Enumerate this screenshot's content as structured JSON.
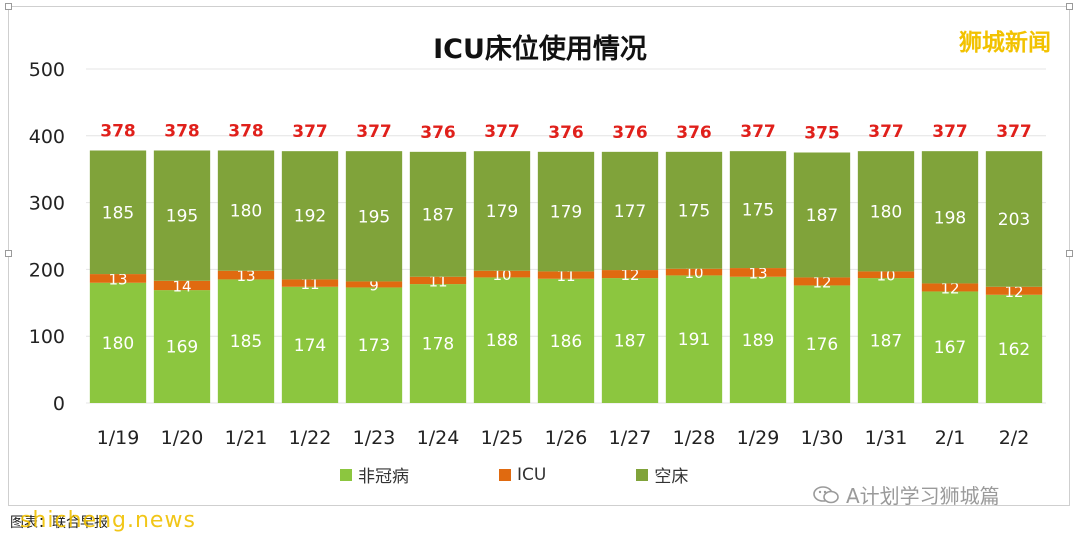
{
  "title": "ICU床位使用情况",
  "brand": "狮城新闻",
  "colors": {
    "non_covid": "#8cc63f",
    "icu": "#e06a10",
    "empty": "#80a33a",
    "total_label": "#e0201b"
  },
  "legend": [
    "非冠病",
    "ICU",
    "空床"
  ],
  "wechat_watermark": "A计划学习狮城篇",
  "source": "图表：联合早报",
  "site_watermark": "shicheng.news",
  "chart_data": {
    "type": "bar",
    "stacked": true,
    "categories": [
      "1/19",
      "1/20",
      "1/21",
      "1/22",
      "1/23",
      "1/24",
      "1/25",
      "1/26",
      "1/27",
      "1/28",
      "1/29",
      "1/30",
      "1/31",
      "2/1",
      "2/2"
    ],
    "series": [
      {
        "name": "非冠病",
        "values": [
          180,
          169,
          185,
          174,
          173,
          178,
          188,
          186,
          187,
          191,
          189,
          176,
          187,
          167,
          162
        ]
      },
      {
        "name": "ICU",
        "values": [
          13,
          14,
          13,
          11,
          9,
          11,
          10,
          11,
          12,
          10,
          13,
          12,
          10,
          12,
          12
        ]
      },
      {
        "name": "空床",
        "values": [
          185,
          195,
          180,
          192,
          195,
          187,
          179,
          179,
          177,
          175,
          175,
          187,
          180,
          198,
          203
        ]
      }
    ],
    "totals": [
      378,
      378,
      378,
      377,
      377,
      376,
      377,
      376,
      376,
      376,
      377,
      375,
      377,
      377,
      377
    ],
    "ylim": [
      0,
      500
    ],
    "yticks": [
      0,
      100,
      200,
      300,
      400,
      500
    ],
    "grid": true,
    "legend_position": "bottom"
  }
}
